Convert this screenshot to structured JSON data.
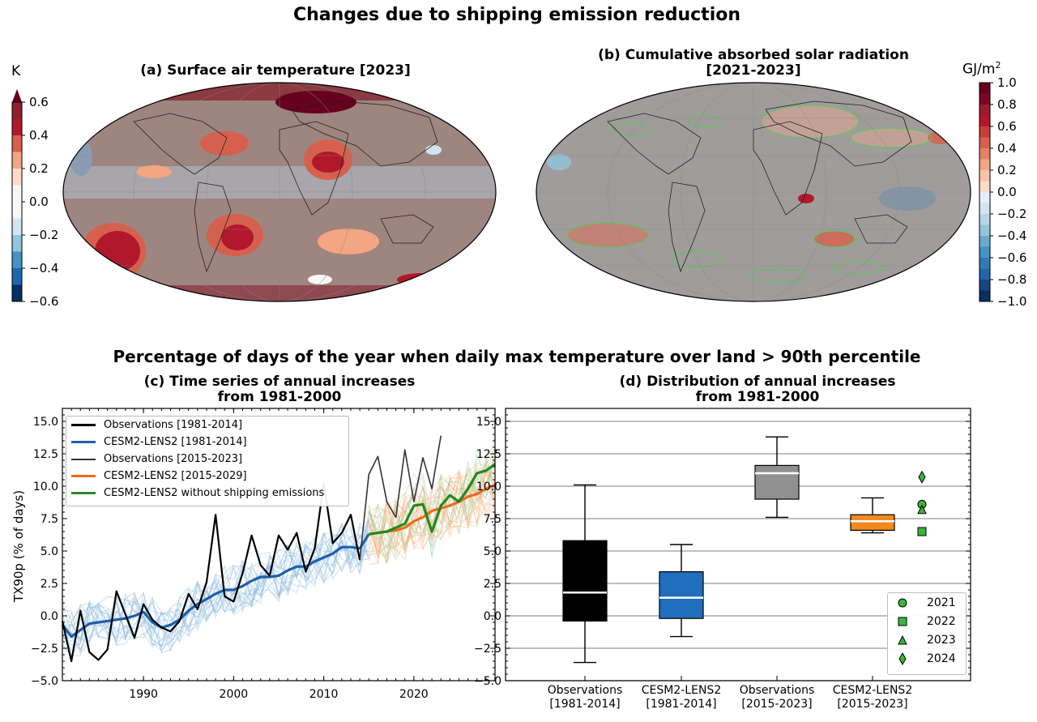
{
  "main_title": "Changes due to shipping emission reduction",
  "section2_title": "Percentage of days of the year when daily max temperature over land > 90th percentile",
  "panel_a": {
    "title": "(a) Surface air temperature [2023]",
    "colorbar_unit": "K",
    "colorbar_ticks": [
      "0.6",
      "0.4",
      "0.2",
      "0.0",
      "−0.2",
      "−0.4",
      "−0.6"
    ],
    "colors": [
      "#67001f",
      "#b2182b",
      "#d6604d",
      "#f4a582",
      "#fddbc7",
      "#f7f7f7",
      "#d1e5f0",
      "#92c5de",
      "#4393c3",
      "#2166ac",
      "#053061"
    ]
  },
  "panel_b": {
    "title_line1": "(b) Cumulative absorbed solar radiation",
    "title_line2": "[2021-2023]",
    "colorbar_unit": "GJ/m",
    "colorbar_unit_sup": "2",
    "colorbar_ticks": [
      "1.0",
      "0.8",
      "0.6",
      "0.4",
      "0.2",
      "0.0",
      "−0.2",
      "−0.4",
      "−0.6",
      "−0.8",
      "−1.0"
    ]
  },
  "chart_data": [
    {
      "type": "line",
      "title": "(c) Time series of annual increases from 1981-2000",
      "title_line1": "(c) Time series of annual increases",
      "title_line2": "from 1981-2000",
      "xlabel": "",
      "ylabel": "TX90p (% of days)",
      "xlim": [
        1981,
        2029
      ],
      "ylim": [
        -5.0,
        16.0
      ],
      "x_ticks": [
        "1990",
        "2000",
        "2010",
        "2020"
      ],
      "y_ticks": [
        "−5.0",
        "−2.5",
        "0.0",
        "2.5",
        "5.0",
        "7.5",
        "10.0",
        "12.5",
        "15.0"
      ],
      "legend": [
        {
          "label": "Observations [1981-2014]",
          "color": "#000000"
        },
        {
          "label": "CESM2-LENS2 [1981-2014]",
          "color": "#1f5fa8"
        },
        {
          "label": "Observations [2015-2023]",
          "color": "#333333"
        },
        {
          "label": "CESM2-LENS2 [2015-2029]",
          "color": "#ee6a1a"
        },
        {
          "label": "CESM2-LENS2 without shipping emissions",
          "color": "#2a8a2a"
        }
      ],
      "series": [
        {
          "name": "Observations [1981-2014]",
          "x": [
            1981,
            1982,
            1983,
            1984,
            1985,
            1986,
            1987,
            1988,
            1989,
            1990,
            1991,
            1992,
            1993,
            1994,
            1995,
            1996,
            1997,
            1998,
            1999,
            2000,
            2001,
            2002,
            2003,
            2004,
            2005,
            2006,
            2007,
            2008,
            2009,
            2010,
            2011,
            2012,
            2013,
            2014
          ],
          "values": [
            -0.4,
            -3.5,
            0.4,
            -2.8,
            -3.4,
            -2.6,
            1.9,
            0.1,
            -1.7,
            0.9,
            -0.3,
            -0.9,
            -1.2,
            -0.4,
            1.7,
            0.5,
            2.6,
            7.8,
            1.5,
            1.1,
            3.3,
            6.2,
            3.9,
            3.1,
            6.2,
            5.1,
            6.4,
            3.4,
            5.2,
            10.2,
            5.6,
            6.4,
            7.8,
            4.3
          ]
        },
        {
          "name": "CESM2-LENS2 [1981-2014]",
          "x": [
            1981,
            1982,
            1983,
            1984,
            1985,
            1986,
            1987,
            1988,
            1989,
            1990,
            1991,
            1992,
            1993,
            1994,
            1995,
            1996,
            1997,
            1998,
            1999,
            2000,
            2001,
            2002,
            2003,
            2004,
            2005,
            2006,
            2007,
            2008,
            2009,
            2010,
            2011,
            2012,
            2013,
            2014,
            2015
          ],
          "values": [
            -0.7,
            -1.6,
            -1.1,
            -0.6,
            -0.5,
            -0.4,
            -0.3,
            -0.2,
            0.0,
            0.3,
            -0.5,
            -0.9,
            -0.7,
            -0.3,
            0.4,
            0.9,
            1.3,
            1.7,
            2.0,
            2.0,
            2.3,
            2.7,
            3.0,
            3.0,
            3.1,
            3.5,
            3.8,
            3.8,
            4.2,
            4.5,
            4.8,
            5.3,
            5.3,
            5.2,
            6.3
          ]
        },
        {
          "name": "Observations [2015-2023]",
          "x": [
            2014,
            2015,
            2016,
            2017,
            2018,
            2019,
            2020,
            2021,
            2022,
            2023
          ],
          "values": [
            4.3,
            10.9,
            12.3,
            8.8,
            7.6,
            12.8,
            8.8,
            12.2,
            9.8,
            13.9
          ]
        },
        {
          "name": "CESM2-LENS2 [2015-2029]",
          "x": [
            2015,
            2016,
            2017,
            2018,
            2019,
            2020,
            2021,
            2022,
            2023,
            2024,
            2025,
            2026,
            2027,
            2028,
            2029
          ],
          "values": [
            6.3,
            6.4,
            6.5,
            6.6,
            6.8,
            7.3,
            7.6,
            8.1,
            8.3,
            8.5,
            8.8,
            9.2,
            9.4,
            9.8,
            10.1
          ]
        },
        {
          "name": "CESM2-LENS2 without shipping emissions",
          "x": [
            2015,
            2016,
            2017,
            2018,
            2019,
            2020,
            2021,
            2022,
            2023,
            2024,
            2025,
            2026,
            2027,
            2028,
            2029
          ],
          "values": [
            6.3,
            6.4,
            6.5,
            6.8,
            7.1,
            8.5,
            8.6,
            6.5,
            8.5,
            9.3,
            8.8,
            9.8,
            11.0,
            11.2,
            11.7
          ]
        }
      ]
    },
    {
      "type": "box",
      "title": "(d) Distribution of annual increases from 1981-2000",
      "title_line1": "(d) Distribution of annual increases",
      "title_line2": "from 1981-2000",
      "ylim": [
        -5.0,
        16.0
      ],
      "y_ticks": [
        "−5.0",
        "−2.5",
        "0.0",
        "2.5",
        "5.0",
        "7.5",
        "10.0",
        "12.5",
        "15.0"
      ],
      "categories": [
        {
          "line1": "Observations",
          "line2": "[1981-2014]"
        },
        {
          "line1": "CESM2-LENS2",
          "line2": "[1981-2014]"
        },
        {
          "line1": "Observations",
          "line2": "[2015-2023]"
        },
        {
          "line1": "CESM2-LENS2",
          "line2": "[2015-2023]"
        }
      ],
      "boxes": [
        {
          "whisker_low": -3.6,
          "q1": -0.4,
          "median": 1.8,
          "q3": 5.8,
          "whisker_high": 10.1,
          "color": "#000000",
          "median_color": "#ffffff"
        },
        {
          "whisker_low": -1.6,
          "q1": -0.2,
          "median": 1.4,
          "q3": 3.4,
          "whisker_high": 5.5,
          "color": "#1f6fbd",
          "median_color": "#ffffff"
        },
        {
          "whisker_low": 7.6,
          "q1": 9.0,
          "median": 11.0,
          "q3": 11.6,
          "whisker_high": 13.8,
          "color": "#909090",
          "median_color": "#ffffff"
        },
        {
          "whisker_low": 6.4,
          "q1": 6.6,
          "median": 7.3,
          "q3": 7.8,
          "whisker_high": 9.1,
          "color": "#f28a1e",
          "median_color": "#ffffff"
        }
      ],
      "points": [
        {
          "label": "2021",
          "marker": "circle",
          "value": 8.6
        },
        {
          "label": "2022",
          "marker": "square",
          "value": 6.5
        },
        {
          "label": "2023",
          "marker": "triangle",
          "value": 8.2
        },
        {
          "label": "2024",
          "marker": "diamond",
          "value": 10.7
        }
      ]
    }
  ]
}
